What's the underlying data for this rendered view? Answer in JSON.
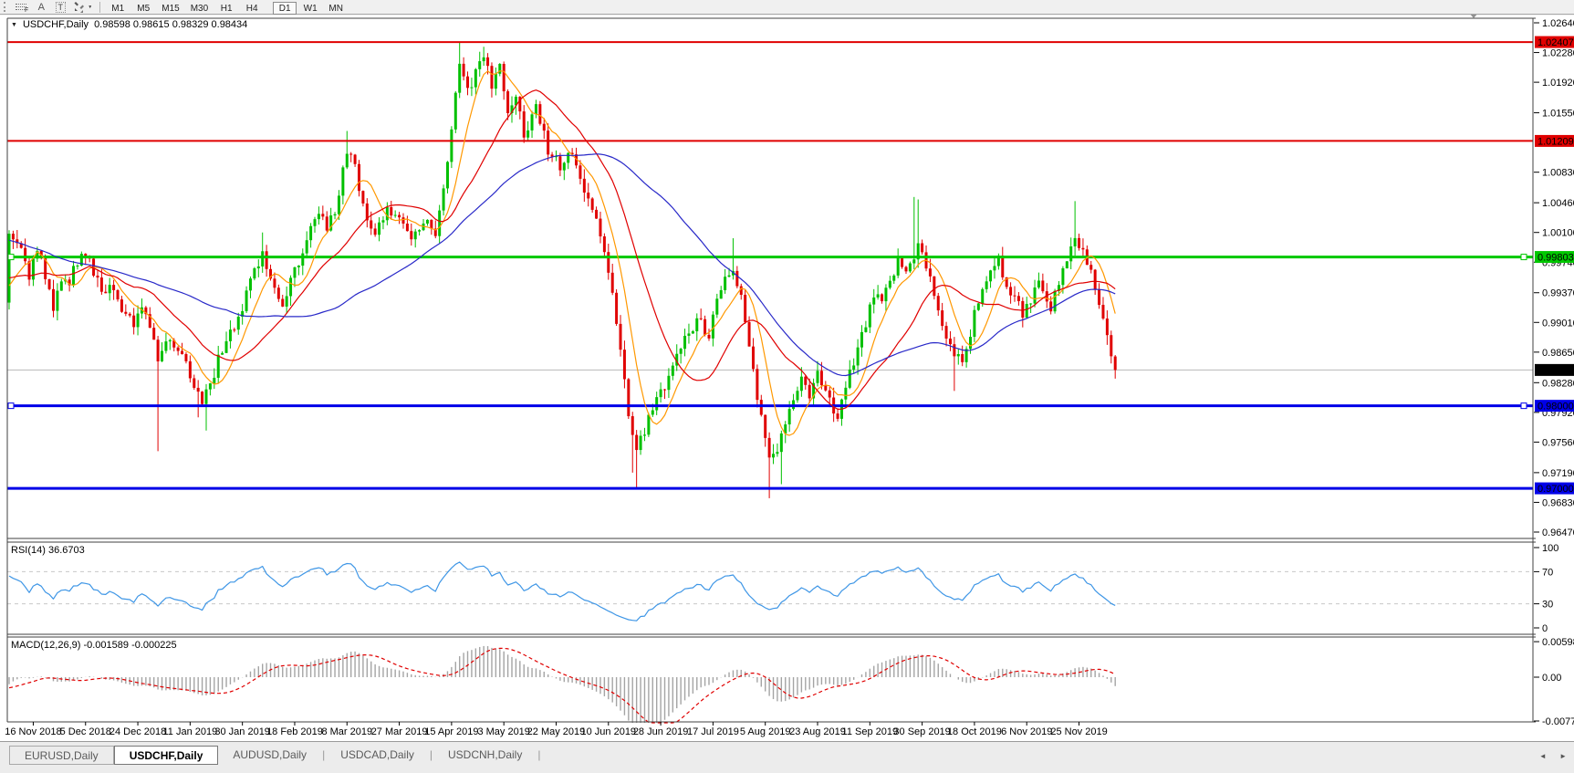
{
  "toolbar": {
    "fibo_glyph": "F",
    "text_glyph": "A",
    "label_glyph": "T",
    "dropdown_glyph": "▼",
    "timeframes": [
      "M1",
      "M5",
      "M15",
      "M30",
      "H1",
      "H4",
      "D1",
      "W1",
      "MN"
    ],
    "active_timeframe": "D1",
    "separators_after": [
      "H4",
      "MN"
    ]
  },
  "chart": {
    "title": {
      "dropdown_glyph": "▼",
      "symbol": "USDCHF,Daily",
      "ohlc": "0.98598 0.98615 0.98329 0.98434"
    },
    "ohlc_values": {
      "open": 0.98598,
      "high": 0.98615,
      "low": 0.98329,
      "close": 0.98434
    },
    "price_axis": {
      "max": 1.0264,
      "min": 0.9647,
      "tick_labels": [
        "1.02640",
        "1.02280",
        "1.01920",
        "1.01550",
        "1.00830",
        "1.00460",
        "1.00100",
        "0.99740",
        "0.99370",
        "0.99010",
        "0.98650",
        "0.98280",
        "0.97920",
        "0.97560",
        "0.97190",
        "0.96830",
        "0.96470"
      ]
    },
    "hlines": [
      {
        "price": 1.02407,
        "label": "1.02407",
        "color": "#e00000",
        "width": 2,
        "handles": false
      },
      {
        "price": 1.01209,
        "label": "1.01209",
        "color": "#e00000",
        "width": 2,
        "handles": false
      },
      {
        "price": 0.99803,
        "label": "0.99803",
        "color": "#00c800",
        "width": 3,
        "handles": true
      },
      {
        "price": 0.98,
        "label": "0.98000",
        "color": "#0000e8",
        "width": 3,
        "handles": true
      },
      {
        "price": 0.97,
        "label": "0.97000",
        "color": "#0000e8",
        "width": 3,
        "handles": false
      }
    ],
    "current_price": {
      "value": 0.98434,
      "label": "0.98434",
      "line_color": "#b8b8b8",
      "label_bg": "#000000"
    },
    "candles": {
      "up_color": "#00c000",
      "down_color": "#e00000",
      "count": 276,
      "first_open": 0.9925,
      "prehistory": {
        "days": 60,
        "start": 1.0093,
        "end": 0.9925
      },
      "close_anchors": [
        [
          0,
          1.0005
        ],
        [
          2,
          0.9998
        ],
        [
          4,
          0.9975
        ],
        [
          5,
          0.9952
        ],
        [
          7,
          0.9992
        ],
        [
          9,
          0.996
        ],
        [
          11,
          0.9917
        ],
        [
          13,
          0.995
        ],
        [
          15,
          0.9952
        ],
        [
          17,
          0.9975
        ],
        [
          19,
          0.9985
        ],
        [
          21,
          0.996
        ],
        [
          24,
          0.9936
        ],
        [
          26,
          0.9944
        ],
        [
          27,
          0.993
        ],
        [
          29,
          0.991
        ],
        [
          31,
          0.9896
        ],
        [
          33,
          0.9918
        ],
        [
          34,
          0.9912
        ],
        [
          36,
          0.9875
        ],
        [
          37,
          0.985
        ],
        [
          39,
          0.988
        ],
        [
          41,
          0.9872
        ],
        [
          43,
          0.9856
        ],
        [
          45,
          0.984
        ],
        [
          47,
          0.9815
        ],
        [
          48,
          0.98
        ],
        [
          50,
          0.9826
        ],
        [
          52,
          0.9855
        ],
        [
          54,
          0.988
        ],
        [
          56,
          0.9895
        ],
        [
          58,
          0.992
        ],
        [
          60,
          0.995
        ],
        [
          62,
          0.9975
        ],
        [
          63,
          0.9985
        ],
        [
          65,
          0.995
        ],
        [
          66,
          0.994
        ],
        [
          68,
          0.9925
        ],
        [
          70,
          0.995
        ],
        [
          73,
          0.999
        ],
        [
          75,
          1.0015
        ],
        [
          77,
          1.0038
        ],
        [
          79,
          1.0015
        ],
        [
          81,
          1.0035
        ],
        [
          84,
          1.011
        ],
        [
          86,
          1.009
        ],
        [
          88,
          1.004
        ],
        [
          91,
          1.001
        ],
        [
          94,
          1.0035
        ],
        [
          97,
          1.0028
        ],
        [
          100,
          1.0
        ],
        [
          103,
          1.0025
        ],
        [
          106,
          1.0012
        ],
        [
          108,
          1.006
        ],
        [
          110,
          1.013
        ],
        [
          112,
          1.0215
        ],
        [
          114,
          1.018
        ],
        [
          116,
          1.0205
        ],
        [
          118,
          1.022
        ],
        [
          120,
          1.019
        ],
        [
          122,
          1.021
        ],
        [
          124,
          1.016
        ],
        [
          126,
          1.0175
        ],
        [
          128,
          1.013
        ],
        [
          131,
          1.016
        ],
        [
          134,
          1.011
        ],
        [
          137,
          1.009
        ],
        [
          140,
          1.0105
        ],
        [
          143,
          1.006
        ],
        [
          146,
          1.002
        ],
        [
          148,
          0.999
        ],
        [
          150,
          0.9935
        ],
        [
          152,
          0.987
        ],
        [
          154,
          0.979
        ],
        [
          156,
          0.975
        ],
        [
          158,
          0.977
        ],
        [
          160,
          0.98
        ],
        [
          163,
          0.9825
        ],
        [
          166,
          0.986
        ],
        [
          169,
          0.989
        ],
        [
          172,
          0.9905
        ],
        [
          174,
          0.988
        ],
        [
          176,
          0.993
        ],
        [
          178,
          0.9955
        ],
        [
          180,
          0.997
        ],
        [
          182,
          0.993
        ],
        [
          184,
          0.987
        ],
        [
          186,
          0.981
        ],
        [
          188,
          0.976
        ],
        [
          189,
          0.9735
        ],
        [
          191,
          0.975
        ],
        [
          193,
          0.9775
        ],
        [
          195,
          0.9805
        ],
        [
          197,
          0.983
        ],
        [
          199,
          0.9815
        ],
        [
          201,
          0.984
        ],
        [
          203,
          0.982
        ],
        [
          206,
          0.978
        ],
        [
          208,
          0.9825
        ],
        [
          211,
          0.987
        ],
        [
          213,
          0.99
        ],
        [
          215,
          0.9938
        ],
        [
          217,
          0.9925
        ],
        [
          219,
          0.995
        ],
        [
          221,
          0.9975
        ],
        [
          223,
          0.996
        ],
        [
          225,
          0.998
        ],
        [
          226,
          0.9995
        ],
        [
          228,
          0.9972
        ],
        [
          230,
          0.994
        ],
        [
          232,
          0.99
        ],
        [
          235,
          0.9865
        ],
        [
          237,
          0.985
        ],
        [
          239,
          0.989
        ],
        [
          241,
          0.993
        ],
        [
          243,
          0.995
        ],
        [
          246,
          0.9975
        ],
        [
          248,
          0.995
        ],
        [
          250,
          0.993
        ],
        [
          252,
          0.991
        ],
        [
          254,
          0.993
        ],
        [
          256,
          0.995
        ],
        [
          258,
          0.993
        ],
        [
          259,
          0.9915
        ],
        [
          261,
          0.995
        ],
        [
          263,
          0.998
        ],
        [
          265,
          1.0
        ],
        [
          267,
          0.999
        ],
        [
          269,
          0.996
        ],
        [
          271,
          0.9927
        ],
        [
          272,
          0.9905
        ],
        [
          273,
          0.9884
        ],
        [
          274,
          0.986
        ],
        [
          275,
          0.98434
        ]
      ],
      "wick_overrides": [
        {
          "d": 37,
          "low": 0.9745
        },
        {
          "d": 47,
          "low": 0.9786
        },
        {
          "d": 49,
          "low": 0.977
        },
        {
          "d": 63,
          "high": 1.001
        },
        {
          "d": 84,
          "high": 1.0133
        },
        {
          "d": 112,
          "high": 1.024
        },
        {
          "d": 118,
          "high": 1.0235
        },
        {
          "d": 155,
          "low": 0.9719
        },
        {
          "d": 156,
          "low": 0.97
        },
        {
          "d": 180,
          "high": 1.0003
        },
        {
          "d": 189,
          "low": 0.9688
        },
        {
          "d": 192,
          "low": 0.9705
        },
        {
          "d": 225,
          "high": 1.0053
        },
        {
          "d": 226,
          "high": 1.005
        },
        {
          "d": 235,
          "low": 0.9818
        },
        {
          "d": 265,
          "high": 1.0048
        }
      ]
    },
    "moving_averages": [
      {
        "name": "fast",
        "period": 8,
        "color": "#ff9800"
      },
      {
        "name": "medium",
        "period": 21,
        "color": "#e00000"
      },
      {
        "name": "slow",
        "period": 55,
        "color": "#2828c8"
      }
    ]
  },
  "rsi": {
    "label": "RSI(14) 36.6703",
    "period": 14,
    "value": 36.6703,
    "line_color": "#3e96e6",
    "level_dash_color": "#c8c8c8",
    "levels": [
      70,
      30
    ],
    "tick_labels": [
      "100",
      "70",
      "30",
      "0"
    ],
    "tick_values": [
      100,
      70,
      30,
      0
    ]
  },
  "macd": {
    "label": "MACD(12,26,9) -0.001589 -0.000225",
    "fast": 12,
    "slow": 26,
    "signal": 9,
    "macd_value": -0.001589,
    "signal_value": -0.000225,
    "hist_color": "#a4a4a4",
    "signal_color": "#e00000",
    "tick_labels": [
      "0.005986",
      "0.00",
      "-0.00773"
    ],
    "tick_values": [
      0.005986,
      0.0,
      -0.00773
    ]
  },
  "date_axis": [
    "16 Nov 2018",
    "5 Dec 2018",
    "24 Dec 2018",
    "11 Jan 2019",
    "30 Jan 2019",
    "18 Feb 2019",
    "8 Mar 2019",
    "27 Mar 2019",
    "15 Apr 2019",
    "3 May 2019",
    "22 May 2019",
    "10 Jun 2019",
    "28 Jun 2019",
    "17 Jul 2019",
    "5 Aug 2019",
    "23 Aug 2019",
    "11 Sep 2019",
    "30 Sep 2019",
    "18 Oct 2019",
    "6 Nov 2019",
    "25 Nov 2019"
  ],
  "tabs": {
    "items": [
      {
        "label": "EURUSD,Daily",
        "active": false,
        "boxed": true
      },
      {
        "label": "USDCHF,Daily",
        "active": true,
        "boxed": true
      },
      {
        "label": "AUDUSD,Daily",
        "active": false,
        "boxed": false
      },
      {
        "label": "USDCAD,Daily",
        "active": false,
        "boxed": false
      },
      {
        "label": "USDCNH,Daily",
        "active": false,
        "boxed": false
      }
    ],
    "separator_glyph": "|",
    "left_arrow_glyph": "◄",
    "right_arrow_glyph": "►"
  },
  "ui_colors": {
    "toolbar_bg": "#f0f0f0",
    "pane_bg": "#ffffff",
    "pane_border": "#404040",
    "axis_text": "#000000",
    "tab_bar_bg": "#ececec",
    "shift_marker": "#909090"
  }
}
